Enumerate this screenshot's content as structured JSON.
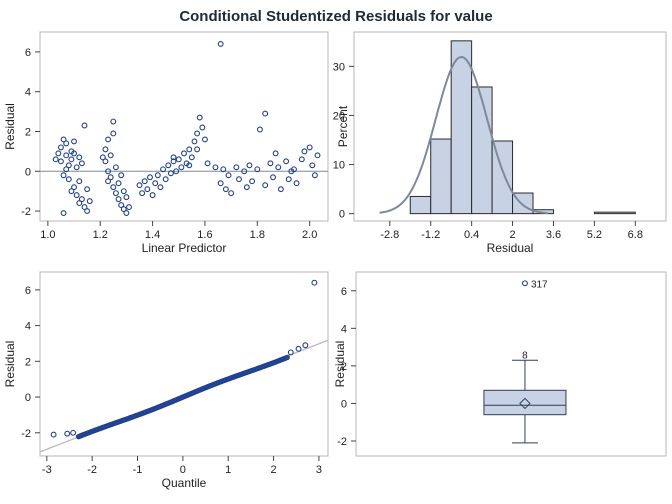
{
  "title": "Conditional Studentized Residuals for value",
  "chart_data": [
    {
      "type": "scatter",
      "xlabel": "Linear Predictor",
      "ylabel": "Residual",
      "xlim": [
        0.97,
        2.07
      ],
      "ylim": [
        -2.5,
        7.0
      ],
      "xticks": [
        "1.0",
        "1.2",
        "1.4",
        "1.6",
        "1.8",
        "2.0"
      ],
      "yticks": [
        "-2",
        "0",
        "2",
        "4",
        "6"
      ],
      "reference_line_y": 0,
      "points": [
        [
          1.04,
          0.9
        ],
        [
          1.05,
          1.2
        ],
        [
          1.05,
          0.5
        ],
        [
          1.06,
          1.6
        ],
        [
          1.06,
          -0.2
        ],
        [
          1.07,
          0.8
        ],
        [
          1.07,
          1.4
        ],
        [
          1.08,
          0.3
        ],
        [
          1.08,
          -0.4
        ],
        [
          1.09,
          1.0
        ],
        [
          1.09,
          0.6
        ],
        [
          1.1,
          1.5
        ],
        [
          1.1,
          -0.8
        ],
        [
          1.11,
          0.2
        ],
        [
          1.11,
          -1.2
        ],
        [
          1.12,
          0.7
        ],
        [
          1.12,
          -0.5
        ],
        [
          1.13,
          -1.4
        ],
        [
          1.13,
          0.4
        ],
        [
          1.14,
          -1.8
        ],
        [
          1.14,
          2.3
        ],
        [
          1.15,
          -2.0
        ],
        [
          1.15,
          -0.9
        ],
        [
          1.06,
          -2.1
        ],
        [
          1.16,
          -1.5
        ],
        [
          1.03,
          0.6
        ],
        [
          1.09,
          -1.0
        ],
        [
          1.12,
          -1.6
        ],
        [
          1.07,
          0.1
        ],
        [
          1.1,
          0.9
        ],
        [
          1.22,
          1.1
        ],
        [
          1.22,
          0.5
        ],
        [
          1.23,
          0.0
        ],
        [
          1.23,
          1.6
        ],
        [
          1.24,
          -0.3
        ],
        [
          1.24,
          0.8
        ],
        [
          1.25,
          -0.8
        ],
        [
          1.25,
          2.5
        ],
        [
          1.26,
          -1.1
        ],
        [
          1.26,
          0.2
        ],
        [
          1.27,
          -1.4
        ],
        [
          1.27,
          -0.6
        ],
        [
          1.28,
          -1.7
        ],
        [
          1.28,
          -0.2
        ],
        [
          1.29,
          -1.9
        ],
        [
          1.29,
          -1.0
        ],
        [
          1.3,
          -2.1
        ],
        [
          1.3,
          -1.3
        ],
        [
          1.25,
          1.9
        ],
        [
          1.23,
          -0.5
        ],
        [
          1.31,
          -1.8
        ],
        [
          1.21,
          0.7
        ],
        [
          1.35,
          -0.7
        ],
        [
          1.36,
          -1.1
        ],
        [
          1.37,
          -0.5
        ],
        [
          1.38,
          -0.9
        ],
        [
          1.39,
          -0.3
        ],
        [
          1.4,
          -1.2
        ],
        [
          1.41,
          -0.6
        ],
        [
          1.42,
          -0.2
        ],
        [
          1.43,
          -0.8
        ],
        [
          1.44,
          0.1
        ],
        [
          1.45,
          -0.4
        ],
        [
          1.46,
          0.3
        ],
        [
          1.47,
          -0.1
        ],
        [
          1.48,
          0.5
        ],
        [
          1.49,
          0.0
        ],
        [
          1.5,
          0.6
        ],
        [
          1.51,
          0.2
        ],
        [
          1.52,
          0.9
        ],
        [
          1.53,
          0.4
        ],
        [
          1.54,
          1.1
        ],
        [
          1.55,
          0.7
        ],
        [
          1.56,
          1.5
        ],
        [
          1.57,
          1.9
        ],
        [
          1.58,
          2.7
        ],
        [
          1.59,
          2.2
        ],
        [
          1.6,
          1.6
        ],
        [
          1.54,
          0.3
        ],
        [
          1.57,
          1.1
        ],
        [
          1.48,
          0.7
        ],
        [
          1.61,
          0.4
        ],
        [
          1.66,
          6.4
        ],
        [
          1.64,
          0.2
        ],
        [
          1.66,
          -0.6
        ],
        [
          1.67,
          0.1
        ],
        [
          1.68,
          -0.9
        ],
        [
          1.69,
          -0.2
        ],
        [
          1.7,
          -1.1
        ],
        [
          1.72,
          0.2
        ],
        [
          1.73,
          -0.4
        ],
        [
          1.75,
          0.0
        ],
        [
          1.76,
          -0.8
        ],
        [
          1.77,
          0.3
        ],
        [
          1.78,
          -0.5
        ],
        [
          1.8,
          0.1
        ],
        [
          1.81,
          2.1
        ],
        [
          1.83,
          2.9
        ],
        [
          1.83,
          -0.7
        ],
        [
          1.85,
          0.4
        ],
        [
          1.86,
          -0.3
        ],
        [
          1.88,
          0.2
        ],
        [
          1.89,
          -0.9
        ],
        [
          1.91,
          0.5
        ],
        [
          1.92,
          -0.4
        ],
        [
          1.94,
          0.1
        ],
        [
          1.95,
          -0.6
        ],
        [
          1.97,
          0.6
        ],
        [
          1.98,
          1.0
        ],
        [
          2.0,
          1.2
        ],
        [
          2.01,
          0.3
        ],
        [
          2.02,
          -0.2
        ],
        [
          2.03,
          0.8
        ],
        [
          1.87,
          0.9
        ],
        [
          1.93,
          0.0
        ]
      ]
    },
    {
      "type": "histogram",
      "xlabel": "Residual",
      "ylabel": "Percent",
      "xlim": [
        -4.2,
        8.0
      ],
      "ylim": [
        -1.5,
        37
      ],
      "xticks": [
        "-2.8",
        "-1.2",
        "0.4",
        "2",
        "3.6",
        "5.2",
        "6.8"
      ],
      "yticks": [
        "0",
        "10",
        "20",
        "30"
      ],
      "bins": [
        [
          -2.0,
          -1.2,
          3.5
        ],
        [
          -1.2,
          -0.4,
          15.2
        ],
        [
          -0.4,
          0.4,
          35.2
        ],
        [
          0.4,
          1.2,
          25.8
        ],
        [
          1.2,
          2.0,
          14.8
        ],
        [
          2.0,
          2.8,
          4.2
        ],
        [
          2.8,
          3.6,
          0.8
        ],
        [
          5.2,
          6.8,
          0.3
        ]
      ],
      "density_curve": "normal"
    },
    {
      "type": "scatter",
      "xlabel": "Quantile",
      "ylabel": "Residual",
      "xlim": [
        -3.15,
        3.2
      ],
      "ylim": [
        -3.3,
        7.0
      ],
      "xticks": [
        "-3",
        "-2",
        "-1",
        "0",
        "1",
        "2",
        "3"
      ],
      "yticks": [
        "-2",
        "0",
        "2",
        "4",
        "6"
      ],
      "reference_line": [
        [
          -3.15,
          -3.07
        ],
        [
          3.2,
          3.18
        ]
      ],
      "outlier_points": [
        [
          -2.85,
          -2.1
        ],
        [
          -2.55,
          -2.05
        ],
        [
          -2.42,
          -2.0
        ],
        [
          2.38,
          2.5
        ],
        [
          2.55,
          2.7
        ],
        [
          2.7,
          2.9
        ],
        [
          2.9,
          6.4
        ]
      ]
    },
    {
      "type": "box",
      "ylabel": "Residual",
      "ylim": [
        -2.8,
        7.0
      ],
      "yticks": [
        "-2",
        "0",
        "2",
        "4",
        "6"
      ],
      "q1": -0.6,
      "median": -0.1,
      "q3": 0.7,
      "mean": 0.0,
      "whisker_low": -2.1,
      "whisker_high": 2.3,
      "outliers": [
        {
          "value": 6.4,
          "label": "317"
        }
      ],
      "extra_label": {
        "value": 2.6,
        "label": "8"
      }
    }
  ]
}
